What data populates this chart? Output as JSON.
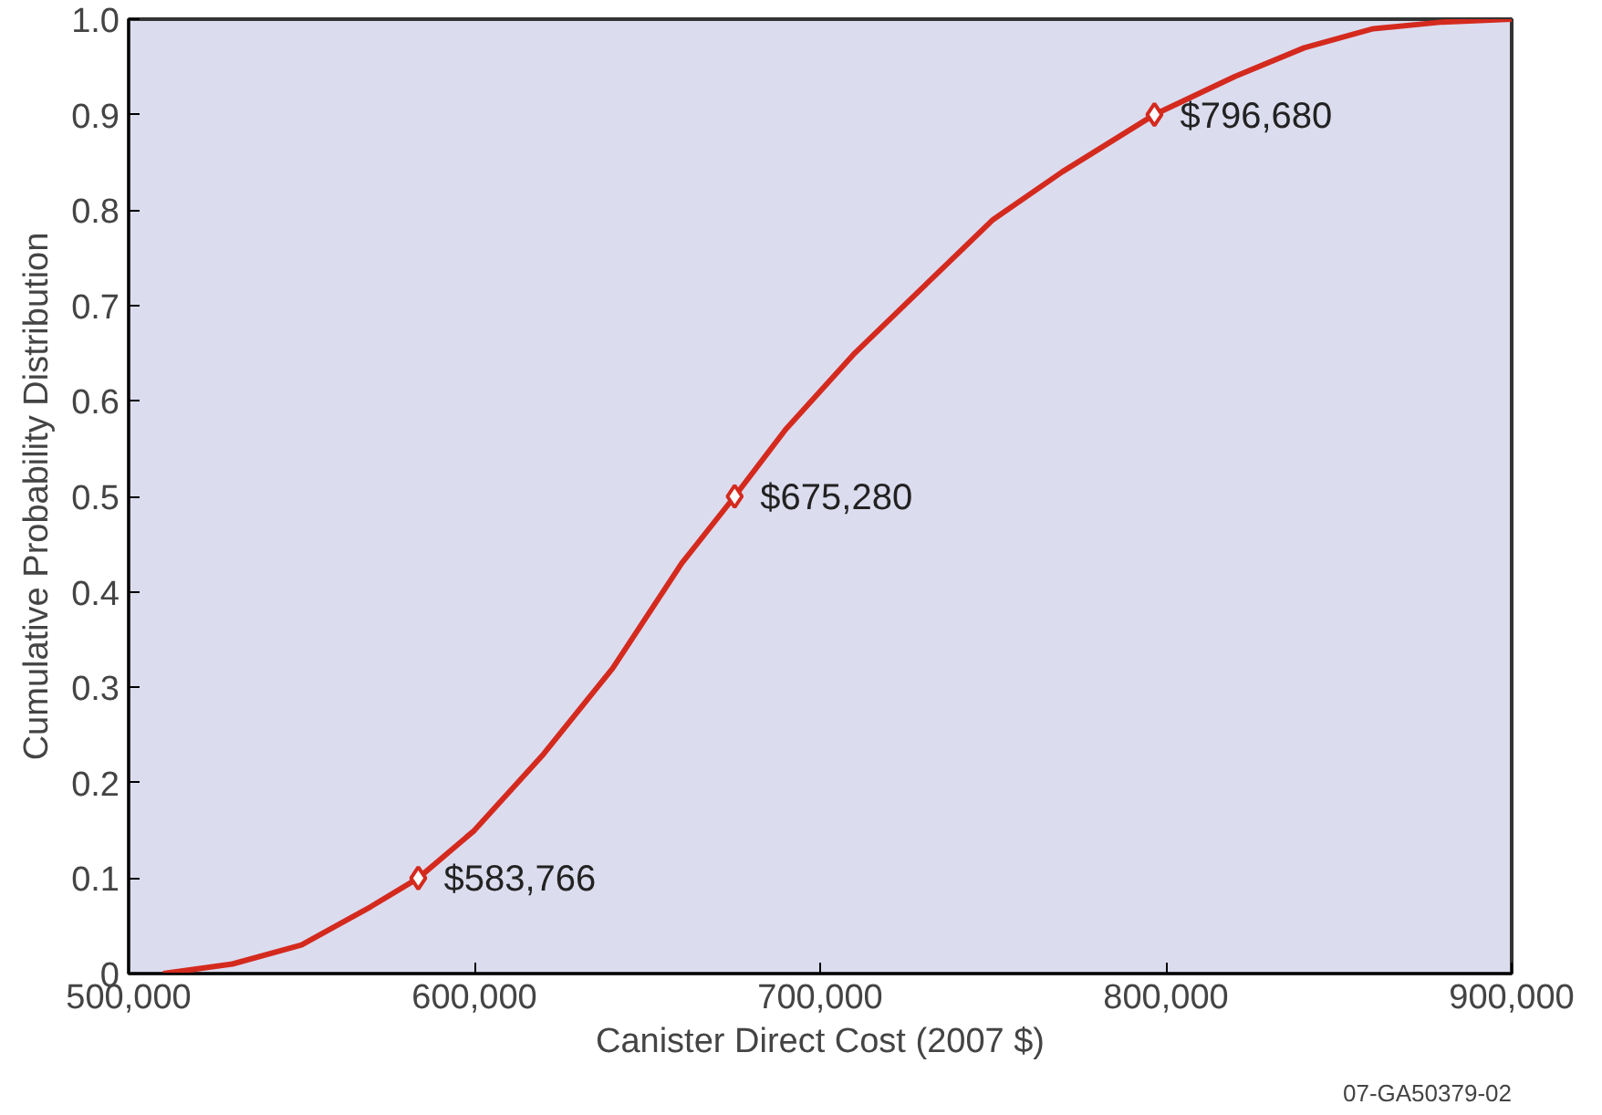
{
  "chart_data": {
    "type": "line",
    "xlabel": "Canister Direct Cost (2007 $)",
    "ylabel": "Cumulative Probability Distribution",
    "xlim": [
      500000,
      900000
    ],
    "ylim": [
      0,
      1
    ],
    "xticks": [
      {
        "value": 500000,
        "label": "500,000"
      },
      {
        "value": 600000,
        "label": "600,000"
      },
      {
        "value": 700000,
        "label": "700,000"
      },
      {
        "value": 800000,
        "label": "800,000"
      },
      {
        "value": 900000,
        "label": "900,000"
      }
    ],
    "yticks": [
      0,
      0.1,
      0.2,
      0.3,
      0.4,
      0.5,
      0.6,
      0.7,
      0.8,
      0.9,
      {
        "value": 1,
        "label": "1.0"
      }
    ],
    "series": [
      {
        "color": "#d42a1e",
        "marker": "none",
        "x": [
          510000,
          530000,
          550000,
          570000,
          583766,
          600000,
          620000,
          640000,
          660000,
          675280,
          690000,
          710000,
          730000,
          750000,
          770000,
          796680,
          820000,
          840000,
          860000,
          880000,
          900000
        ],
        "values": [
          0,
          0.01,
          0.03,
          0.07,
          0.1,
          0.15,
          0.23,
          0.32,
          0.43,
          0.5,
          0.57,
          0.65,
          0.72,
          0.79,
          0.84,
          0.9,
          0.94,
          0.97,
          0.99,
          0.997,
          1
        ]
      },
      {
        "type": "scatter",
        "color": "#d42a1e",
        "marker": "diamond",
        "x": [
          583766,
          675280,
          796680
        ],
        "values": [
          0.1,
          0.5,
          0.9
        ]
      }
    ],
    "annotations": [
      {
        "text": "$583,766",
        "x": 583766,
        "y": 0.1
      },
      {
        "text": "$675,280",
        "x": 675280,
        "y": 0.5
      },
      {
        "text": "$796,680",
        "x": 796680,
        "y": 0.9
      },
      "07-GA50379-02"
    ]
  }
}
